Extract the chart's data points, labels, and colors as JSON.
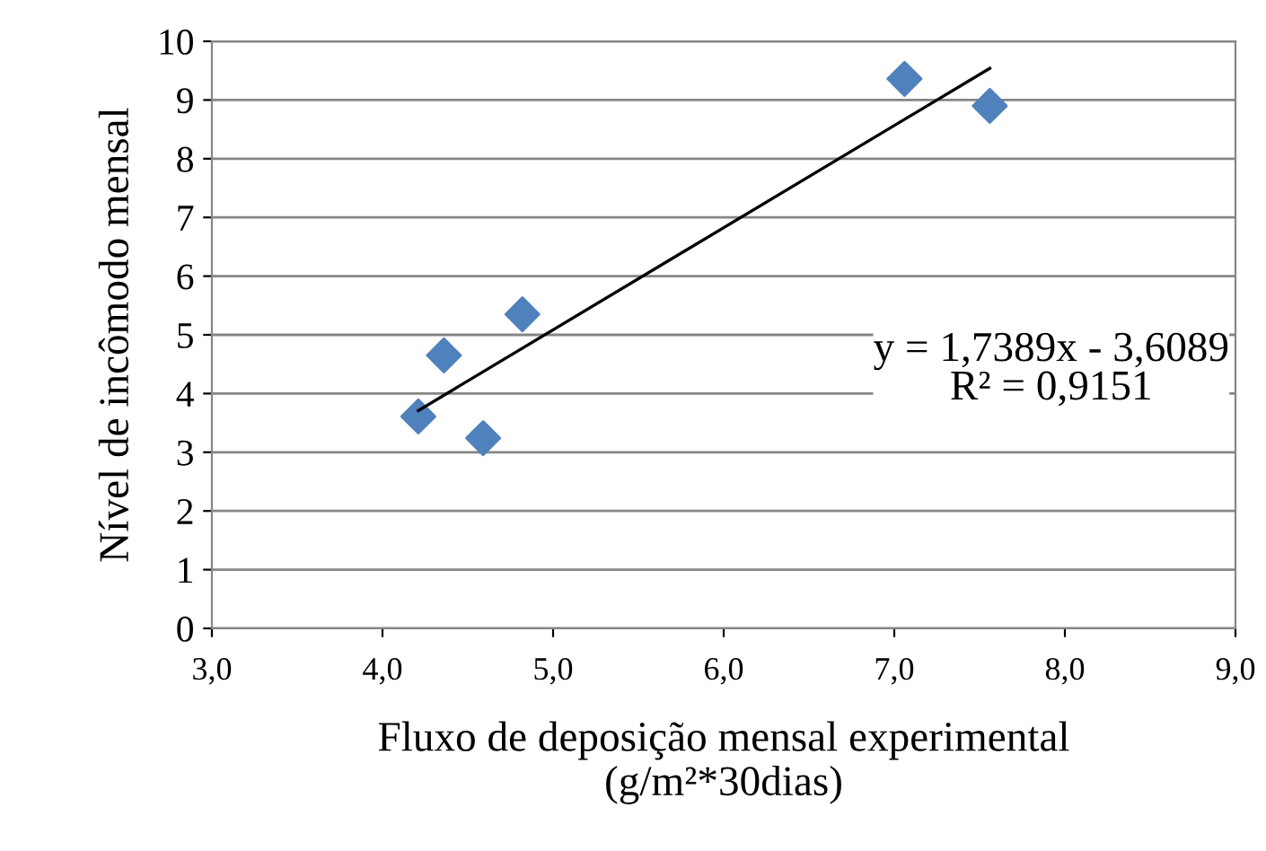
{
  "chart_data": {
    "type": "scatter",
    "xlabel": "Fluxo de deposição mensal experimental\n(g/m²*30dias)",
    "ylabel": "Nível de incômodo mensal",
    "series": [
      {
        "color": "#4f81bd",
        "marker": "diamond",
        "x": [
          4.21,
          4.36,
          4.59,
          4.82,
          7.06,
          7.56
        ],
        "values": [
          3.61,
          4.65,
          3.24,
          5.35,
          9.36,
          8.9
        ]
      },
      {
        "type": "line",
        "color": "#000000",
        "marker": "none",
        "line_style": "solid",
        "x": [
          4.21,
          7.56
        ],
        "values": [
          3.71,
          9.54
        ]
      }
    ],
    "xlim": [
      3,
      9
    ],
    "xticks": [
      {
        "value": 3,
        "label": "3,0"
      },
      {
        "value": 4,
        "label": "4,0"
      },
      {
        "value": 5,
        "label": "5,0"
      },
      {
        "value": 6,
        "label": "6,0"
      },
      {
        "value": 7,
        "label": "7,0"
      },
      {
        "value": 8,
        "label": "8,0"
      },
      {
        "value": 9,
        "label": "9,0"
      }
    ],
    "ylim": [
      0,
      10
    ],
    "yticks": [
      0,
      1,
      2,
      3,
      4,
      5,
      6,
      7,
      8,
      9,
      10
    ],
    "grid": "y",
    "legend": false,
    "annotations": [
      "y = 1,7389x - 3,6089\nR² = 0,9151"
    ]
  }
}
